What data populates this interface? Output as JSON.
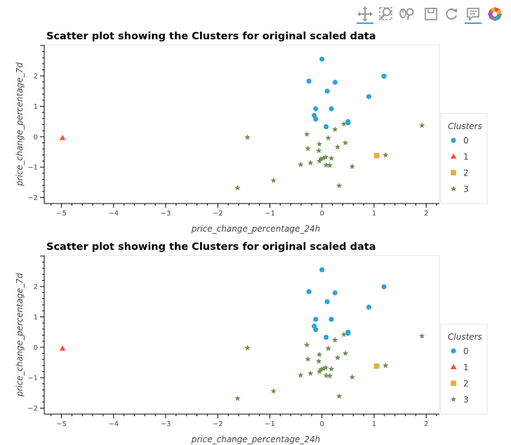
{
  "toolbar": {
    "tools": [
      {
        "name": "pan-tool-icon",
        "active": true
      },
      {
        "name": "box-zoom-tool-icon",
        "active": false
      },
      {
        "name": "wheel-zoom-tool-icon",
        "active": false
      },
      {
        "name": "save-tool-icon",
        "active": false
      },
      {
        "name": "reset-tool-icon",
        "active": false
      },
      {
        "name": "hover-tool-icon",
        "active": true
      },
      {
        "name": "bokeh-logo-icon",
        "active": false
      }
    ]
  },
  "colors": {
    "cluster0": "#30a2da",
    "cluster1": "#fc4f30",
    "cluster2": "#e5ae38",
    "cluster3": "#6d904f"
  },
  "chart_data": [
    {
      "type": "scatter",
      "title": "Scatter plot showing the Clusters for original scaled data",
      "xlabel": "price_change_percentage_24h",
      "ylabel": "price_change_percentage_7d",
      "xlim": [
        -5.25,
        2.2
      ],
      "ylim": [
        -2.15,
        2.95
      ],
      "xticks": [
        -5,
        -4,
        -3,
        -2,
        -1,
        0,
        1,
        2
      ],
      "yticks": [
        -2,
        -1,
        0,
        1,
        2
      ],
      "grid": false,
      "legend": {
        "title": "Clusters",
        "placement": "right"
      },
      "series": [
        {
          "name": "0",
          "marker": "circle",
          "points": [
            [
              0.0,
              2.55
            ],
            [
              -0.25,
              1.83
            ],
            [
              0.25,
              1.79
            ],
            [
              1.19,
              1.99
            ],
            [
              0.1,
              1.5
            ],
            [
              0.9,
              1.32
            ],
            [
              -0.12,
              0.92
            ],
            [
              0.18,
              0.92
            ],
            [
              -0.15,
              0.7
            ],
            [
              -0.12,
              0.58
            ],
            [
              0.5,
              0.5
            ],
            [
              0.5,
              0.46
            ],
            [
              0.08,
              0.33
            ]
          ]
        },
        {
          "name": "1",
          "marker": "triangle",
          "points": [
            [
              -4.98,
              -0.04
            ]
          ]
        },
        {
          "name": "2",
          "marker": "square",
          "points": [
            [
              1.05,
              -0.62
            ]
          ]
        },
        {
          "name": "3",
          "marker": "star",
          "points": [
            [
              1.92,
              0.37
            ],
            [
              0.42,
              0.42
            ],
            [
              0.25,
              0.24
            ],
            [
              -0.29,
              0.08
            ],
            [
              -1.43,
              -0.02
            ],
            [
              0.12,
              -0.04
            ],
            [
              -0.05,
              -0.24
            ],
            [
              0.45,
              -0.2
            ],
            [
              0.3,
              -0.34
            ],
            [
              -0.27,
              -0.39
            ],
            [
              -0.06,
              -0.46
            ],
            [
              1.22,
              -0.6
            ],
            [
              0.07,
              -0.67
            ],
            [
              0.03,
              -0.7
            ],
            [
              0.18,
              -0.71
            ],
            [
              -0.02,
              -0.73
            ],
            [
              -0.05,
              -0.8
            ],
            [
              -0.22,
              -0.86
            ],
            [
              -0.41,
              -0.92
            ],
            [
              0.08,
              -0.93
            ],
            [
              0.15,
              -0.94
            ],
            [
              0.58,
              -0.98
            ],
            [
              -0.93,
              -1.44
            ],
            [
              0.33,
              -1.61
            ],
            [
              -1.62,
              -1.68
            ]
          ]
        }
      ]
    },
    {
      "type": "scatter",
      "title": "Scatter plot showing the Clusters for original scaled data",
      "xlabel": "price_change_percentage_24h",
      "ylabel": "price_change_percentage_7d",
      "xlim": [
        -5.25,
        2.2
      ],
      "ylim": [
        -2.15,
        2.95
      ],
      "xticks": [
        -5,
        -4,
        -3,
        -2,
        -1,
        0,
        1,
        2
      ],
      "yticks": [
        -2,
        -1,
        0,
        1,
        2
      ],
      "grid": false,
      "legend": {
        "title": "Clusters",
        "placement": "right"
      },
      "series": [
        {
          "name": "0",
          "marker": "circle",
          "points": [
            [
              0.0,
              2.55
            ],
            [
              -0.25,
              1.83
            ],
            [
              0.25,
              1.79
            ],
            [
              1.19,
              1.99
            ],
            [
              0.1,
              1.5
            ],
            [
              0.9,
              1.32
            ],
            [
              -0.12,
              0.92
            ],
            [
              0.18,
              0.92
            ],
            [
              -0.15,
              0.7
            ],
            [
              -0.12,
              0.58
            ],
            [
              0.5,
              0.5
            ],
            [
              0.5,
              0.46
            ],
            [
              0.08,
              0.33
            ]
          ]
        },
        {
          "name": "1",
          "marker": "triangle",
          "points": [
            [
              -4.98,
              -0.04
            ]
          ]
        },
        {
          "name": "2",
          "marker": "square",
          "points": [
            [
              1.05,
              -0.62
            ]
          ]
        },
        {
          "name": "3",
          "marker": "star",
          "points": [
            [
              1.92,
              0.37
            ],
            [
              0.42,
              0.42
            ],
            [
              0.25,
              0.24
            ],
            [
              -0.29,
              0.08
            ],
            [
              -1.43,
              -0.02
            ],
            [
              0.12,
              -0.04
            ],
            [
              -0.05,
              -0.24
            ],
            [
              0.45,
              -0.2
            ],
            [
              0.3,
              -0.34
            ],
            [
              -0.27,
              -0.39
            ],
            [
              -0.06,
              -0.46
            ],
            [
              1.22,
              -0.6
            ],
            [
              0.07,
              -0.67
            ],
            [
              0.03,
              -0.7
            ],
            [
              0.18,
              -0.71
            ],
            [
              -0.02,
              -0.73
            ],
            [
              -0.05,
              -0.8
            ],
            [
              -0.22,
              -0.86
            ],
            [
              -0.41,
              -0.92
            ],
            [
              0.08,
              -0.93
            ],
            [
              0.15,
              -0.94
            ],
            [
              0.58,
              -0.98
            ],
            [
              -0.93,
              -1.44
            ],
            [
              0.33,
              -1.61
            ],
            [
              -1.62,
              -1.68
            ]
          ]
        }
      ]
    }
  ]
}
